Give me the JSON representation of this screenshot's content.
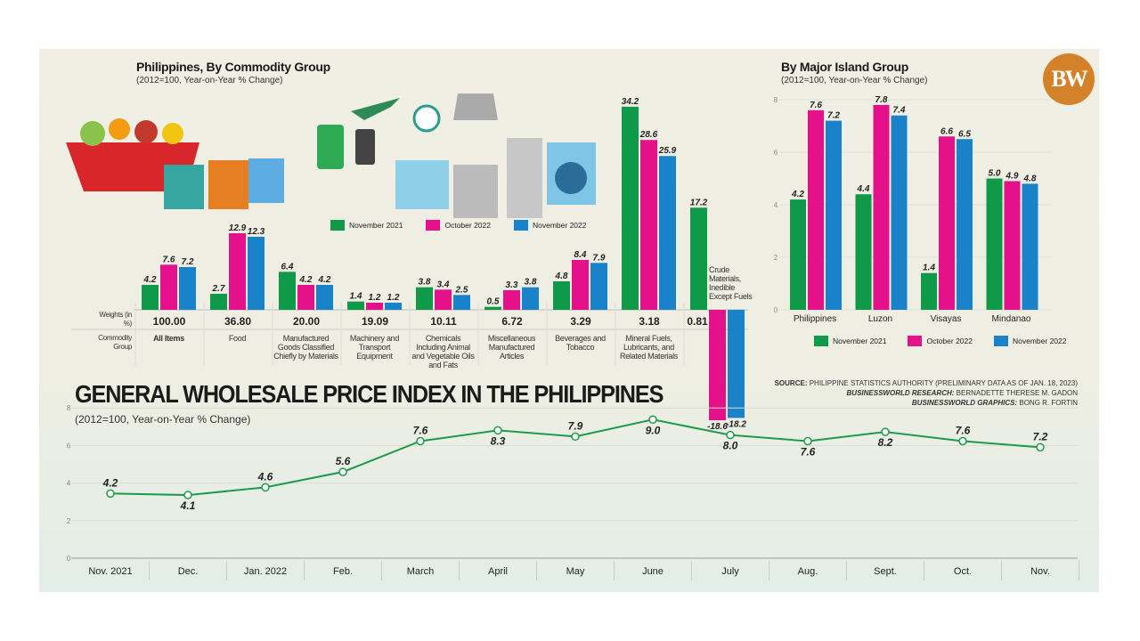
{
  "colors": {
    "nov2021": "#0e9a48",
    "oct2022": "#e5118a",
    "nov2022": "#1a82c8",
    "line": "#1e9a4c",
    "logo": "#d4822a"
  },
  "commodity": {
    "title": "Philippines, By Commodity Group",
    "subtitle": "(2012=100, Year-on-Year % Change)",
    "weights_label": "Weights (in %)",
    "group_label": "Commodity Group",
    "legend": [
      "November 2021",
      "October 2022",
      "November 2022"
    ],
    "illustration": "goods-icons",
    "crude_label": "Crude Materials, Inedible Except Fuels"
  },
  "island": {
    "title": "By Major Island Group",
    "subtitle": "(2012=100, Year-on-Year % Change)",
    "legend": [
      "November 2021",
      "October 2022",
      "November 2022"
    ]
  },
  "main": {
    "title": "GENERAL WHOLESALE PRICE INDEX IN THE PHILIPPINES",
    "subtitle": "(2012=100, Year-on-Year % Change)"
  },
  "logo": "BW",
  "source": {
    "l1a": "SOURCE:",
    "l1b": "PHILIPPINE STATISTICS AUTHORITY (PRELIMINARY DATA AS OF JAN. 18, 2023)",
    "l2a": "BUSINESSWORLD RESEARCH:",
    "l2b": "BERNADETTE THERESE M. GADON",
    "l3a": "BUSINESSWORLD GRAPHICS:",
    "l3b": "BONG R. FORTIN"
  },
  "chart_data": [
    {
      "type": "bar",
      "title": "Philippines, By Commodity Group",
      "categories": [
        "All Items",
        "Food",
        "Manufactured Goods Classified Chiefly by Materials",
        "Machinery and Transport Equipment",
        "Chemicals Including Animal and Vegetable Oils and Fats",
        "Miscellaneous Manufactured Articles",
        "Beverages and Tobacco",
        "Mineral Fuels, Lubricants, and Related Materials",
        "Crude Materials, Inedible Except Fuels"
      ],
      "weights": [
        "100.00",
        "36.80",
        "20.00",
        "19.09",
        "10.11",
        "6.72",
        "3.29",
        "3.18",
        "0.81"
      ],
      "series": [
        {
          "name": "November 2021",
          "values": [
            4.2,
            2.7,
            6.4,
            1.4,
            3.8,
            0.5,
            4.8,
            34.2,
            17.2
          ]
        },
        {
          "name": "October 2022",
          "values": [
            7.6,
            12.9,
            4.2,
            1.2,
            3.4,
            3.3,
            8.4,
            28.6,
            -18.6
          ]
        },
        {
          "name": "November 2022",
          "values": [
            7.2,
            12.3,
            4.2,
            1.2,
            2.5,
            3.8,
            7.9,
            25.9,
            -18.2
          ]
        }
      ],
      "legend": "top-center"
    },
    {
      "type": "bar",
      "title": "By Major Island Group",
      "categories": [
        "Philippines",
        "Luzon",
        "Visayas",
        "Mindanao"
      ],
      "ylim": [
        0,
        8
      ],
      "yticks": [
        "0",
        "2",
        "4",
        "6",
        "8"
      ],
      "series": [
        {
          "name": "November 2021",
          "values": [
            4.2,
            4.4,
            1.4,
            5.0
          ]
        },
        {
          "name": "October 2022",
          "values": [
            7.6,
            7.8,
            6.6,
            4.9
          ]
        },
        {
          "name": "November 2022",
          "values": [
            7.2,
            7.4,
            6.5,
            4.8
          ]
        }
      ],
      "legend": "bottom"
    },
    {
      "type": "line",
      "title": "GENERAL WHOLESALE PRICE INDEX IN THE PHILIPPINES",
      "categories": [
        "Nov. 2021",
        "Dec.",
        "Jan. 2022",
        "Feb.",
        "March",
        "April",
        "May",
        "June",
        "July",
        "Aug.",
        "Sept.",
        "Oct.",
        "Nov."
      ],
      "values": [
        4.2,
        4.1,
        4.6,
        5.6,
        7.6,
        8.3,
        7.9,
        9.0,
        8.0,
        7.6,
        8.2,
        7.6,
        7.2
      ],
      "ylim": [
        0,
        8
      ],
      "yticks": [
        "0",
        "2",
        "4",
        "6",
        "8"
      ],
      "grid": true
    }
  ]
}
